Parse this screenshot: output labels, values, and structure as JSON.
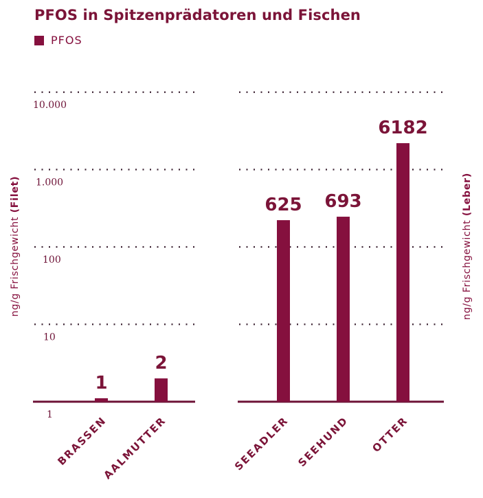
{
  "chart_data": {
    "type": "bar",
    "title": "PFOS in Spitzenprädatoren und Fischen",
    "legend": [
      {
        "label": "PFOS",
        "color": "#85103e"
      }
    ],
    "legend_position": "top-left",
    "scale": "log",
    "grid": true,
    "panels": [
      {
        "id": "fish",
        "ylabel_prefix": "ng/g  Frischgewicht ",
        "ylabel_bold": "(Filet)",
        "ylabel_side": "left",
        "ylim": [
          1,
          10000
        ],
        "ticks": [
          {
            "value": 1,
            "label": "1"
          },
          {
            "value": 10,
            "label": "10"
          },
          {
            "value": 100,
            "label": "100"
          },
          {
            "value": 1000,
            "label": "1.000"
          },
          {
            "value": 10000,
            "label": "10.000"
          }
        ],
        "categories": [
          "BRASSEN",
          "AALMUTTER"
        ],
        "values": [
          1,
          2
        ],
        "value_labels": [
          "1",
          "2"
        ]
      },
      {
        "id": "predators",
        "ylabel_prefix": "ng/g  Frischgewicht ",
        "ylabel_bold": "(Leber)",
        "ylabel_side": "right",
        "ylim": [
          1,
          10000
        ],
        "ticks": [],
        "categories": [
          "SEEADLER",
          "SEEHUND",
          "OTTER"
        ],
        "values": [
          625,
          693,
          6182
        ],
        "value_labels": [
          "625",
          "693",
          "6182"
        ]
      }
    ],
    "colors": {
      "bar": "#85103e",
      "axis": "#6d1236",
      "grid": "#3a2030"
    }
  }
}
